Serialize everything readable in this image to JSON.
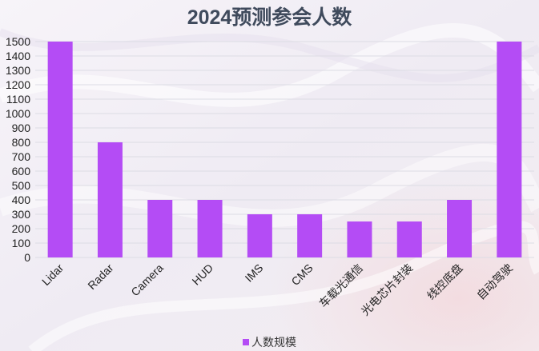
{
  "chart_data": {
    "type": "bar",
    "title": "2024预测参会人数",
    "categories": [
      "Lidar",
      "Radar",
      "Camera",
      "HUD",
      "IMS",
      "CMS",
      "车载光通信",
      "光电芯片封装",
      "线控底盘",
      "自动驾驶"
    ],
    "series": [
      {
        "name": "人数规模",
        "values": [
          1500,
          800,
          400,
          400,
          300,
          300,
          250,
          250,
          400,
          1500
        ]
      }
    ],
    "ylim": [
      0,
      1500
    ],
    "yticks": [
      0,
      100,
      200,
      300,
      400,
      500,
      600,
      700,
      800,
      900,
      1000,
      1100,
      1200,
      1300,
      1400,
      1500
    ],
    "grid": true,
    "legend_position": "bottom",
    "colors": {
      "bar": "#b44cf5",
      "title": "#3f4a5c",
      "grid": "#dcdce4"
    }
  }
}
